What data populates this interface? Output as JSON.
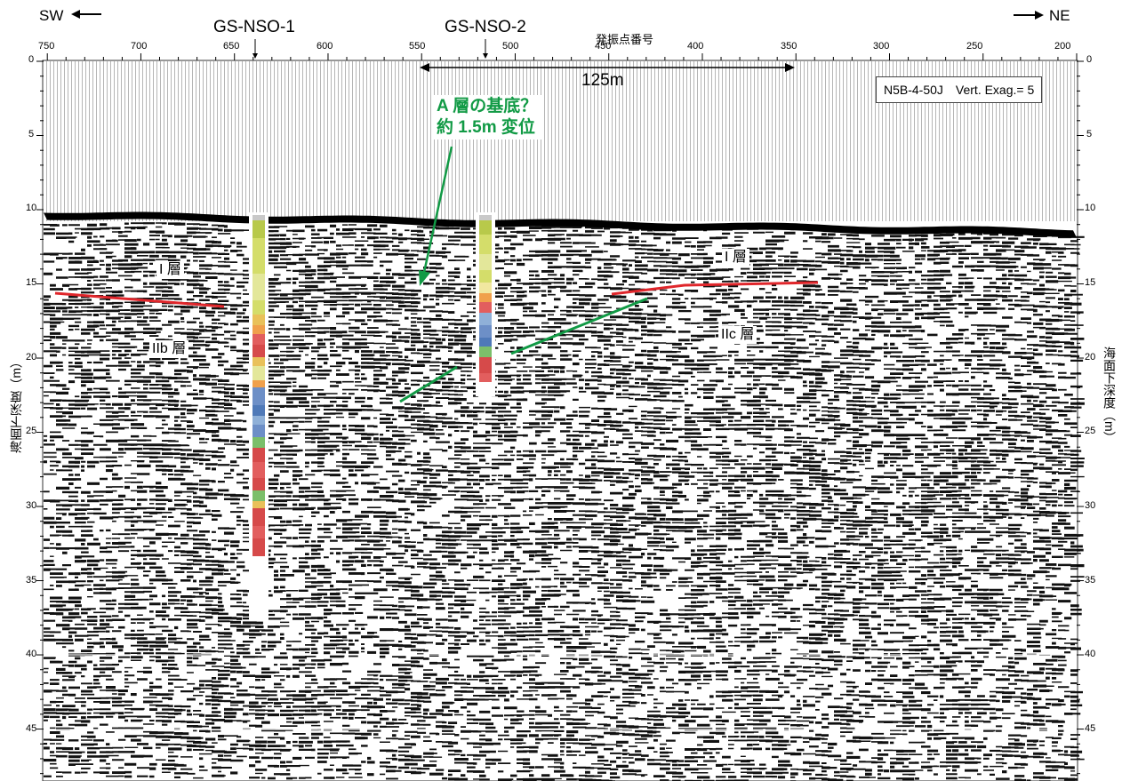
{
  "direction": {
    "left": "SW",
    "right": "NE"
  },
  "wells": [
    {
      "name": "GS-NSO-1",
      "shotpoint": 640
    },
    {
      "name": "GS-NSO-2",
      "shotpoint": 514
    }
  ],
  "x_axis": {
    "title": "発振点番号",
    "ticks": [
      "750",
      "700",
      "650",
      "600",
      "550",
      "500",
      "450",
      "400",
      "350",
      "300",
      "250",
      "200"
    ],
    "range": [
      752,
      200
    ]
  },
  "y_axis": {
    "title": "海面下深度（m）",
    "ticks": [
      "0",
      "5",
      "10",
      "15",
      "20",
      "25",
      "30",
      "35",
      "40",
      "45"
    ],
    "range": [
      0,
      48.5
    ]
  },
  "scale_bar": {
    "label": "125m",
    "from_shotpoint": 552,
    "to_shotpoint": 350
  },
  "info_box": "N5B-4-50J　Vert. Exag.= 5",
  "layer_labels": {
    "i_left": "I 層",
    "iib": "IIb 層",
    "i_right": "I 層",
    "iic": "IIc 層"
  },
  "annotation": {
    "line1": "A 層の基底？",
    "line2": "約 1.5m 変位"
  },
  "colors": {
    "boundary_red": "#e0262b",
    "annotation_green": "#119a45"
  }
}
